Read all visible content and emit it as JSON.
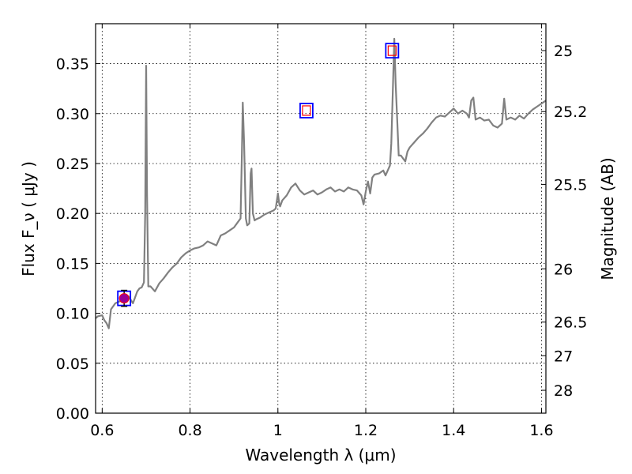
{
  "chart_data": {
    "type": "line",
    "xlabel": "Wavelength  λ (μm)",
    "ylabel": "Flux  F_ν  ( μJy )",
    "y2label": "Magnitude (AB)",
    "xlim": [
      0.585,
      1.61
    ],
    "ylim": [
      0.0,
      0.39
    ],
    "grid": true,
    "x_ticks": [
      0.6,
      0.8,
      1.0,
      1.2,
      1.4,
      1.6
    ],
    "x_tick_labels": [
      "0.6",
      "0.8",
      "1",
      "1.2",
      "1.4",
      "1.6"
    ],
    "y_ticks": [
      0.0,
      0.05,
      0.1,
      0.15,
      0.2,
      0.25,
      0.3,
      0.35
    ],
    "y_tick_labels": [
      "0.00",
      "0.05",
      "0.10",
      "0.15",
      "0.20",
      "0.25",
      "0.30",
      "0.35"
    ],
    "mag_ticks": [
      "25",
      "25.2",
      "25.5",
      "26",
      "26.5",
      "27",
      "28"
    ],
    "colors": {
      "spectrum": "#808080",
      "model_box": "#0000ff",
      "observed_box": "#ff0000",
      "observed_fill": "#990099"
    },
    "series": [
      {
        "role": "model-spectrum",
        "x": [
          0.585,
          0.59,
          0.6,
          0.605,
          0.61,
          0.615,
          0.62,
          0.63,
          0.64,
          0.65,
          0.66,
          0.67,
          0.68,
          0.685,
          0.69,
          0.695,
          0.698,
          0.7,
          0.702,
          0.705,
          0.71,
          0.72,
          0.73,
          0.74,
          0.75,
          0.76,
          0.77,
          0.78,
          0.79,
          0.8,
          0.81,
          0.82,
          0.83,
          0.84,
          0.85,
          0.86,
          0.87,
          0.88,
          0.89,
          0.9,
          0.91,
          0.915,
          0.918,
          0.92,
          0.923,
          0.927,
          0.93,
          0.935,
          0.938,
          0.94,
          0.943,
          0.947,
          0.95,
          0.96,
          0.97,
          0.98,
          0.99,
          0.995,
          1.0,
          1.003,
          1.005,
          1.01,
          1.02,
          1.03,
          1.04,
          1.05,
          1.06,
          1.07,
          1.08,
          1.09,
          1.1,
          1.11,
          1.12,
          1.13,
          1.14,
          1.15,
          1.16,
          1.17,
          1.18,
          1.19,
          1.195,
          1.2,
          1.205,
          1.21,
          1.215,
          1.22,
          1.23,
          1.24,
          1.245,
          1.25,
          1.255,
          1.258,
          1.262,
          1.265,
          1.268,
          1.272,
          1.275,
          1.28,
          1.29,
          1.295,
          1.3,
          1.31,
          1.32,
          1.33,
          1.34,
          1.35,
          1.36,
          1.37,
          1.38,
          1.39,
          1.4,
          1.41,
          1.42,
          1.43,
          1.435,
          1.44,
          1.445,
          1.45,
          1.46,
          1.47,
          1.48,
          1.49,
          1.5,
          1.51,
          1.515,
          1.52,
          1.53,
          1.54,
          1.55,
          1.56,
          1.57,
          1.58,
          1.59,
          1.6,
          1.61
        ],
        "y": [
          0.095,
          0.097,
          0.098,
          0.093,
          0.09,
          0.085,
          0.104,
          0.11,
          0.112,
          0.115,
          0.117,
          0.11,
          0.122,
          0.125,
          0.126,
          0.131,
          0.2,
          0.348,
          0.22,
          0.127,
          0.127,
          0.122,
          0.13,
          0.135,
          0.141,
          0.146,
          0.15,
          0.156,
          0.16,
          0.163,
          0.165,
          0.166,
          0.168,
          0.172,
          0.17,
          0.168,
          0.178,
          0.18,
          0.183,
          0.186,
          0.192,
          0.195,
          0.26,
          0.311,
          0.27,
          0.195,
          0.188,
          0.19,
          0.24,
          0.245,
          0.2,
          0.193,
          0.194,
          0.196,
          0.199,
          0.201,
          0.203,
          0.205,
          0.22,
          0.21,
          0.207,
          0.213,
          0.218,
          0.226,
          0.23,
          0.223,
          0.219,
          0.221,
          0.223,
          0.219,
          0.221,
          0.224,
          0.226,
          0.222,
          0.224,
          0.222,
          0.226,
          0.224,
          0.223,
          0.218,
          0.209,
          0.222,
          0.232,
          0.22,
          0.236,
          0.239,
          0.24,
          0.243,
          0.238,
          0.243,
          0.248,
          0.27,
          0.33,
          0.375,
          0.33,
          0.29,
          0.258,
          0.258,
          0.252,
          0.262,
          0.266,
          0.271,
          0.276,
          0.28,
          0.285,
          0.291,
          0.296,
          0.298,
          0.297,
          0.301,
          0.305,
          0.3,
          0.303,
          0.3,
          0.296,
          0.313,
          0.316,
          0.294,
          0.296,
          0.293,
          0.294,
          0.288,
          0.286,
          0.29,
          0.315,
          0.294,
          0.296,
          0.294,
          0.298,
          0.295,
          0.3,
          0.304,
          0.307,
          0.31,
          0.313
        ]
      }
    ],
    "markers": [
      {
        "role": "model-photometry",
        "x": 0.65,
        "y": 0.115
      },
      {
        "role": "model-photometry",
        "x": 1.065,
        "y": 0.303
      },
      {
        "role": "model-photometry",
        "x": 1.26,
        "y": 0.363
      }
    ],
    "observed": [
      {
        "x": 0.65,
        "y": 0.115,
        "yerr": 0.008
      }
    ]
  }
}
